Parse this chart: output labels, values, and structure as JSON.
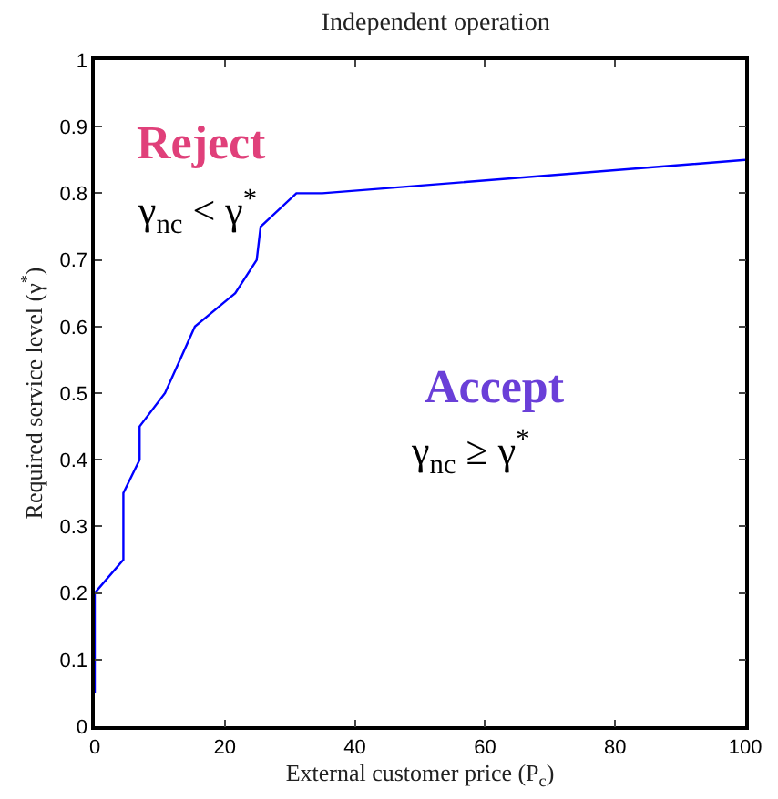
{
  "chart_data": {
    "type": "line",
    "title": "Independent operation",
    "xlabel": "External customer price (P$_{c}$)",
    "ylabel": "Required service level (γ$^{*}$)",
    "x": [
      0,
      0,
      4.4,
      4.4,
      6.9,
      6.9,
      10.8,
      13.1,
      15.4,
      21.6,
      24.9,
      25.5,
      31,
      35,
      100
    ],
    "series": [
      {
        "color": "#0000ff",
        "values": [
          0.05,
          0.2,
          0.25,
          0.35,
          0.4,
          0.45,
          0.5,
          0.55,
          0.6,
          0.65,
          0.7,
          0.75,
          0.8,
          0.8,
          0.85
        ]
      }
    ],
    "xlim": [
      0,
      100
    ],
    "ylim": [
      0,
      1
    ],
    "xticks": [
      0,
      20,
      40,
      60,
      80,
      100
    ],
    "yticks": [
      0,
      0.1,
      0.2,
      0.3,
      0.4,
      0.5,
      0.6,
      0.7,
      0.8,
      0.9,
      1
    ],
    "annotations": [
      "Reject",
      "γ$_{nc}$ < γ$^{*}$",
      "Accept",
      "γ$_{nc}$ ≥ γ$^{*}$"
    ],
    "legend": false,
    "marker": "none",
    "line_style": "solid"
  }
}
